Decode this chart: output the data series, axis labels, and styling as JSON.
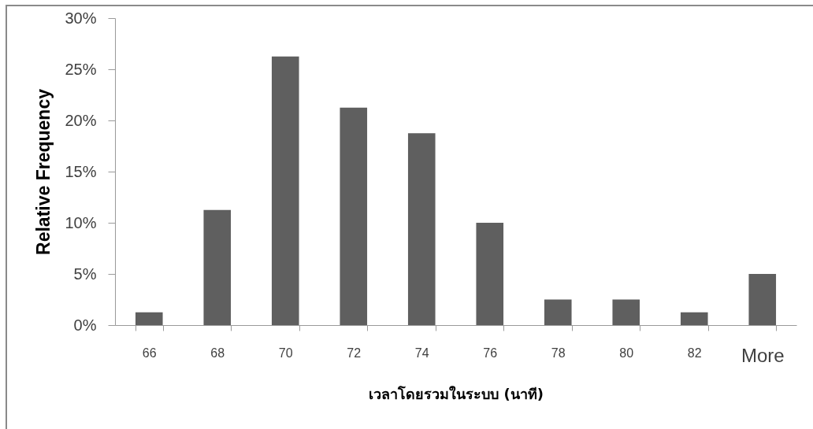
{
  "chart_data": {
    "type": "bar",
    "xlabel": "เวลาโดยรวมในระบบ (นาที)",
    "ylabel": "Relative Frequency",
    "categories": [
      "66",
      "68",
      "70",
      "72",
      "74",
      "76",
      "78",
      "80",
      "82",
      "More"
    ],
    "values": [
      1.25,
      11.25,
      26.25,
      21.25,
      18.75,
      10,
      2.5,
      2.5,
      1.25,
      5
    ],
    "color": "#5f5f5f",
    "ylim": [
      0,
      30
    ],
    "yticks": [
      {
        "value": 0,
        "label": "0%"
      },
      {
        "value": 5,
        "label": "5%"
      },
      {
        "value": 10,
        "label": "10%"
      },
      {
        "value": 15,
        "label": "15%"
      },
      {
        "value": 20,
        "label": "20%"
      },
      {
        "value": 25,
        "label": "25%"
      },
      {
        "value": 30,
        "label": "30%"
      }
    ]
  }
}
